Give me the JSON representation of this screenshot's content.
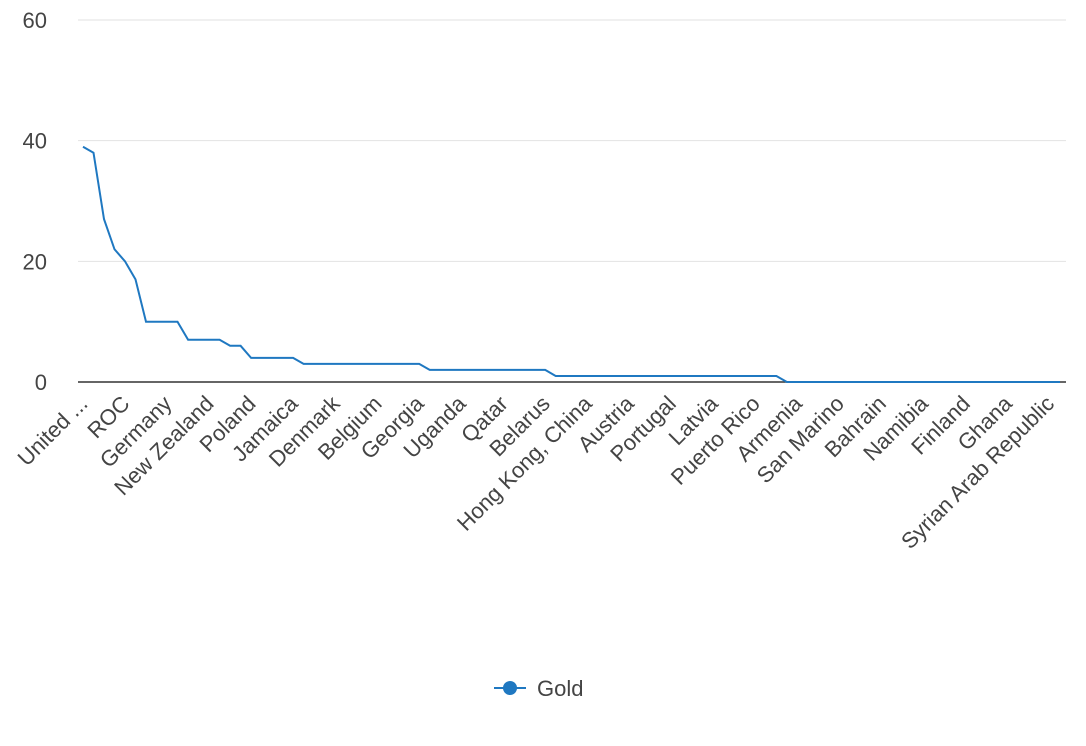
{
  "chart_data": {
    "type": "line",
    "title": "",
    "xlabel": "",
    "ylabel": "",
    "ylim": [
      0,
      60
    ],
    "yticks": [
      0,
      20,
      40,
      60
    ],
    "grid": true,
    "legend_position": "bottom",
    "accent_color": "#1f78c1",
    "labeled_categories": [
      "United ...",
      "ROC",
      "Germany",
      "New Zealand",
      "Poland",
      "Jamaica",
      "Denmark",
      "Belgium",
      "Georgia",
      "Uganda",
      "Qatar",
      "Belarus",
      "Hong Kong, China",
      "Austria",
      "Portugal",
      "Latvia",
      "Puerto Rico",
      "Armenia",
      "San Marino",
      "Bahrain",
      "Namibia",
      "Finland",
      "Ghana",
      "Syrian Arab Republic"
    ],
    "label_every": 4,
    "series": [
      {
        "name": "Gold",
        "color": "#1f78c1",
        "values": [
          39,
          38,
          27,
          22,
          20,
          17,
          10,
          10,
          10,
          10,
          7,
          7,
          7,
          7,
          6,
          6,
          4,
          4,
          4,
          4,
          4,
          3,
          3,
          3,
          3,
          3,
          3,
          3,
          3,
          3,
          3,
          3,
          3,
          2,
          2,
          2,
          2,
          2,
          2,
          2,
          2,
          2,
          2,
          2,
          2,
          1,
          1,
          1,
          1,
          1,
          1,
          1,
          1,
          1,
          1,
          1,
          1,
          1,
          1,
          1,
          1,
          1,
          1,
          1,
          1,
          1,
          1,
          0,
          0,
          0,
          0,
          0,
          0,
          0,
          0,
          0,
          0,
          0,
          0,
          0,
          0,
          0,
          0,
          0,
          0,
          0,
          0,
          0,
          0,
          0,
          0,
          0,
          0,
          0
        ]
      }
    ]
  }
}
